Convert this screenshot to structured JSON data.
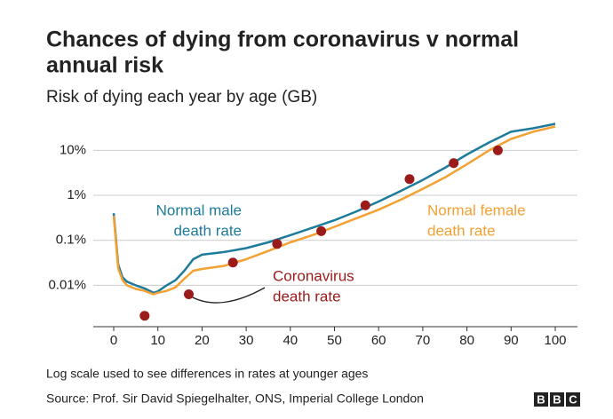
{
  "chart_data": {
    "type": "line",
    "title": [
      "Chances of dying from coronavirus v normal",
      "annual risk"
    ],
    "subtitle": "Risk of dying each year by age (GB)",
    "log_scale": true,
    "grid": true,
    "xlim": [
      0,
      100
    ],
    "xticks": [
      0,
      10,
      20,
      30,
      40,
      50,
      60,
      70,
      80,
      90,
      100
    ],
    "ylim": [
      0.0012,
      50
    ],
    "yticks": [
      {
        "value": 0.01,
        "label": "0.01%"
      },
      {
        "value": 0.1,
        "label": "0.1%"
      },
      {
        "value": 1,
        "label": "1%"
      },
      {
        "value": 10,
        "label": "10%"
      }
    ],
    "x": [
      0,
      1,
      2,
      3,
      5,
      7,
      9,
      10,
      12,
      14,
      16,
      18,
      20,
      25,
      30,
      35,
      40,
      45,
      50,
      55,
      60,
      65,
      70,
      75,
      80,
      85,
      90,
      95,
      100
    ],
    "series": [
      {
        "label": [
          "Normal male",
          "death rate"
        ],
        "color": "#1e7b9b",
        "values": [
          0.4,
          0.029,
          0.015,
          0.012,
          0.01,
          0.0085,
          0.0068,
          0.0073,
          0.01,
          0.013,
          0.021,
          0.038,
          0.048,
          0.055,
          0.067,
          0.09,
          0.13,
          0.19,
          0.28,
          0.44,
          0.73,
          1.25,
          2.2,
          4.1,
          8.1,
          15,
          26,
          31,
          39
        ]
      },
      {
        "label": [
          "Normal female",
          "death rate"
        ],
        "color": "#f3a132",
        "values": [
          0.35,
          0.024,
          0.013,
          0.01,
          0.0083,
          0.0075,
          0.0063,
          0.0068,
          0.0075,
          0.009,
          0.014,
          0.021,
          0.023,
          0.027,
          0.038,
          0.058,
          0.09,
          0.13,
          0.2,
          0.31,
          0.48,
          0.8,
          1.4,
          2.5,
          4.9,
          10,
          18,
          26,
          34
        ]
      },
      {
        "type": "scatter",
        "label": [
          "Coronavirus",
          "death rate"
        ],
        "color": "#9b1a1a",
        "x": [
          7,
          17,
          27,
          37,
          47,
          57,
          67,
          77,
          87
        ],
        "values": [
          0.0021,
          0.0063,
          0.032,
          0.083,
          0.16,
          0.6,
          2.3,
          5.2,
          10
        ]
      }
    ],
    "note": "Log scale used to see differences in rates at younger ages",
    "source": "Source: Prof. Sir David Spiegelhalter, ONS, Imperial College London",
    "logo": [
      "B",
      "B",
      "C"
    ]
  }
}
